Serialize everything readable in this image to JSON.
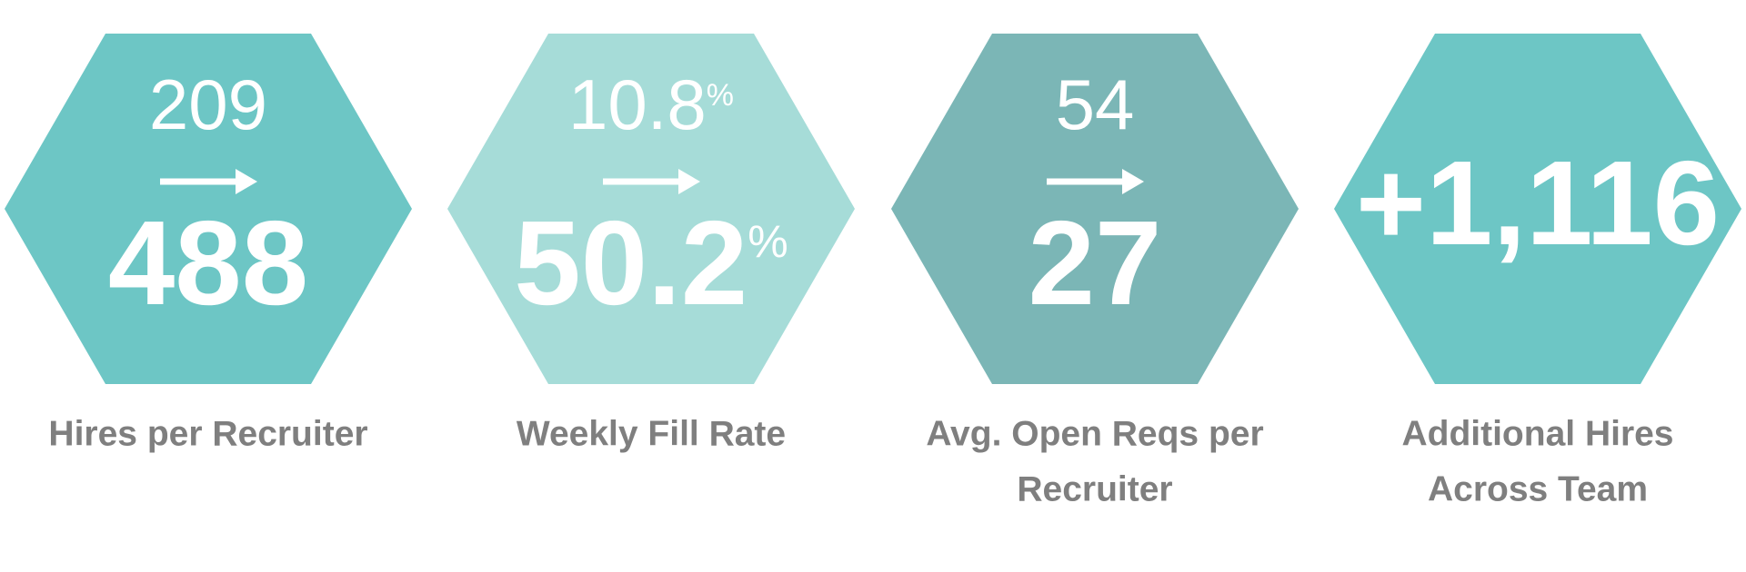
{
  "items": [
    {
      "before": "209",
      "after": "488",
      "label": [
        "Hires per Recruiter"
      ],
      "color": "#6dc6c5"
    },
    {
      "before": "10.8",
      "before_unit": "%",
      "after": "50.2",
      "after_unit": "%",
      "label": [
        "Weekly Fill Rate"
      ],
      "color": "#a6dcd8"
    },
    {
      "before": "54",
      "after": "27",
      "label": [
        "Avg. Open Reqs per",
        "Recruiter"
      ],
      "color": "#7bb6b6"
    },
    {
      "after": "+1,116",
      "label": [
        "Additional Hires",
        "Across Team"
      ],
      "color": "#6dc6c5"
    }
  ]
}
